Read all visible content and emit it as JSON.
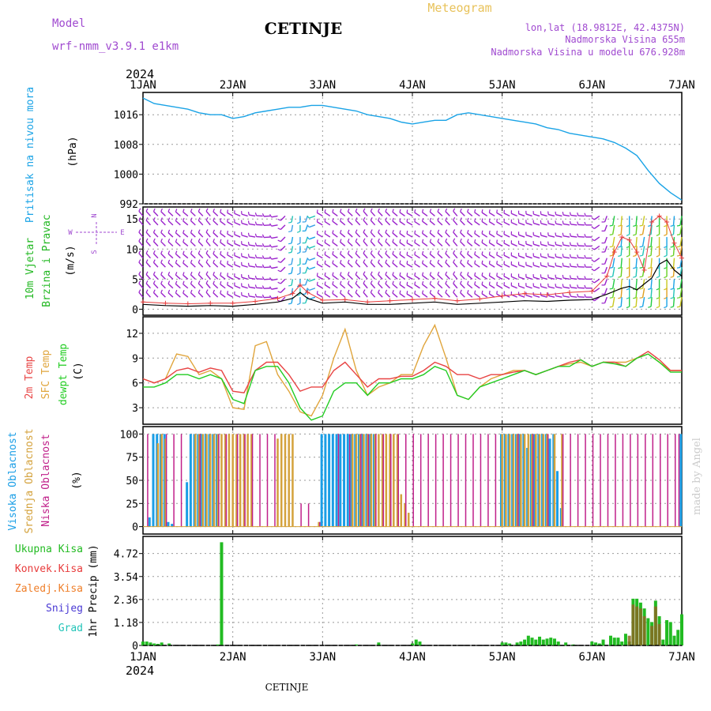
{
  "header": {
    "model_label": "Model",
    "model_value": "wrf-nmm_v3.9.1  e1km",
    "station": "CETINJE",
    "product": "Meteogram",
    "lonlat": "lon,lat (18.9812E, 42.4375N)",
    "elevation": "Nadmorska Visina 655m",
    "model_elevation": "Nadmorska Visina u modelu 676.928m",
    "year_top": "2024",
    "year_bottom": "2024",
    "footer_station": "CETINJE",
    "credit": "made by Angel"
  },
  "colors": {
    "pressure": "#1aa3e6",
    "wind_label": "#22b822",
    "wind_barb": "#9a22cc",
    "gust": "#e83c3c",
    "mean_wind": "#000000",
    "temp2m": "#e84444",
    "sfc_temp": "#e0a53c",
    "dewpoint": "#22cc22",
    "cloud_high": "#1a9ee6",
    "cloud_mid": "#d4a23c",
    "cloud_low": "#c0208a",
    "precip_total": "#22bb22",
    "precip_conv": "#e83c3c",
    "precip_frozen": "#ef7f2a",
    "precip_snow": "#4a3ad4",
    "precip_graupel": "#22c4b8",
    "header_purple": "#a04ad0",
    "header_gold": "#e8c25a"
  },
  "time_axis": {
    "days": [
      "1JAN",
      "2JAN",
      "3JAN",
      "4JAN",
      "5JAN",
      "6JAN",
      "7JAN"
    ]
  },
  "panels": {
    "pressure": {
      "label": "Pritisak na nivou mora",
      "unit": "(hPa)",
      "ticks": [
        "1016",
        "1008",
        "1000",
        "992"
      ]
    },
    "wind": {
      "label1": "10m Vjetar",
      "label2": "Brzina i Pravac",
      "unit": "(m/s)",
      "ticks": [
        "15",
        "10",
        "5",
        "0"
      ],
      "compass_n": "N",
      "compass_s": "S",
      "compass_w": "W",
      "compass_e": "E"
    },
    "temperature": {
      "label1": "2m Temp",
      "label2": "SFC Temp",
      "label3": "dewpt Temp",
      "unit": "(C)",
      "ticks": [
        "12",
        "9",
        "6",
        "3"
      ]
    },
    "clouds": {
      "label1": "Visoka Oblacnost",
      "label2": "Srednja Oblacnost",
      "label3": "Niska Oblacnost",
      "unit": "(%)",
      "ticks": [
        "100",
        "75",
        "50",
        "25",
        "0"
      ]
    },
    "precip": {
      "legend": [
        "Ukupna Kisa",
        "Konvek.Kisa",
        "Zaledj.Kisa",
        "Snijeg",
        "Grad"
      ],
      "unit": "1hr Precip (mm)",
      "ticks": [
        "4.72",
        "3.54",
        "2.36",
        "1.18",
        "0"
      ]
    }
  },
  "chart_data": [
    {
      "type": "line",
      "name": "Pritisak na nivou mora",
      "x_unit": "hours since 1 JAN 2024 00 UTC",
      "ylim": [
        992,
        1022
      ],
      "x": [
        0,
        3,
        6,
        9,
        12,
        15,
        18,
        21,
        24,
        27,
        30,
        33,
        36,
        39,
        42,
        45,
        48,
        51,
        54,
        57,
        60,
        63,
        66,
        69,
        72,
        75,
        78,
        81,
        84,
        87,
        90,
        93,
        96,
        99,
        102,
        105,
        108,
        111,
        114,
        117,
        120,
        123,
        126,
        129,
        132,
        135,
        138,
        141,
        144
      ],
      "values": [
        1020.5,
        1019,
        1018.5,
        1018,
        1017.5,
        1016.5,
        1016,
        1016,
        1015,
        1015.5,
        1016.5,
        1017,
        1017.5,
        1018,
        1018,
        1018.5,
        1018.5,
        1018,
        1017.5,
        1017,
        1016,
        1015.5,
        1015,
        1014,
        1013.5,
        1014,
        1014.5,
        1014.5,
        1016,
        1016.5,
        1016,
        1015.5,
        1015,
        1014.5,
        1014,
        1013.5,
        1012.5,
        1012,
        1011,
        1010.5,
        1010,
        1009.5,
        1008.5,
        1007,
        1005,
        1001,
        997.5,
        995,
        993
      ]
    },
    {
      "type": "line",
      "name": "10m Vjetar Brzina",
      "ylim": [
        -1,
        17
      ],
      "x": [
        0,
        6,
        12,
        18,
        24,
        30,
        36,
        40,
        42,
        44,
        48,
        54,
        60,
        66,
        72,
        78,
        84,
        90,
        96,
        102,
        108,
        114,
        120,
        124,
        126,
        128,
        130,
        132,
        134,
        136,
        138,
        140,
        142,
        144
      ],
      "mean": [
        0.8,
        0.6,
        0.5,
        0.6,
        0.5,
        0.8,
        1.2,
        1.8,
        2.8,
        1.8,
        1.0,
        1.2,
        0.8,
        0.8,
        1.0,
        1.2,
        0.8,
        1.0,
        1.2,
        1.4,
        1.3,
        1.5,
        1.6,
        2.5,
        3.0,
        3.5,
        3.8,
        3.2,
        4.2,
        5.2,
        7.5,
        8.2,
        6.5,
        5.5
      ],
      "gust": [
        1.2,
        1.0,
        0.9,
        1.0,
        1.0,
        1.3,
        1.8,
        2.6,
        4.0,
        2.8,
        1.5,
        1.6,
        1.2,
        1.4,
        1.6,
        1.8,
        1.4,
        1.7,
        2.2,
        2.6,
        2.4,
        2.8,
        3.0,
        5.5,
        9.5,
        12.0,
        11.5,
        9.5,
        6.5,
        14.5,
        15.5,
        14.5,
        11.0,
        8.5
      ],
      "wind_dir_deg": [
        320,
        315,
        310,
        320,
        300,
        280,
        260,
        190,
        180,
        200,
        300,
        310,
        320,
        315,
        300,
        310,
        320,
        305,
        300,
        290,
        285,
        280,
        270,
        200,
        190,
        185,
        180,
        185,
        190,
        185,
        180,
        180,
        185,
        190
      ]
    },
    {
      "type": "line",
      "name": "Temperatura",
      "ylim": [
        1,
        14
      ],
      "x": [
        0,
        3,
        6,
        9,
        12,
        15,
        18,
        21,
        24,
        27,
        30,
        33,
        36,
        39,
        42,
        45,
        48,
        51,
        54,
        57,
        60,
        63,
        66,
        69,
        72,
        75,
        78,
        81,
        84,
        87,
        90,
        93,
        96,
        99,
        102,
        105,
        108,
        111,
        114,
        117,
        120,
        123,
        126,
        129,
        132,
        135,
        138,
        141,
        144
      ],
      "series": [
        {
          "name": "2m Temp",
          "values": [
            6.5,
            6.0,
            6.5,
            7.5,
            7.8,
            7.3,
            7.8,
            7.5,
            5.0,
            4.8,
            7.5,
            8.5,
            8.5,
            7.0,
            5.0,
            5.5,
            5.5,
            7.5,
            8.5,
            7.0,
            5.5,
            6.5,
            6.5,
            6.8,
            6.8,
            7.5,
            8.5,
            8.0,
            7.0,
            7.0,
            6.5,
            7.0,
            7.0,
            7.3,
            7.5,
            7.0,
            7.5,
            8.0,
            8.5,
            8.8,
            8.0,
            8.5,
            8.5,
            8.0,
            9.0,
            9.8,
            8.8,
            7.5,
            7.5
          ]
        },
        {
          "name": "SFC Temp",
          "values": [
            6.5,
            6.0,
            6.5,
            9.5,
            9.2,
            7.0,
            7.5,
            6.5,
            3.0,
            2.8,
            10.5,
            11.0,
            7.0,
            5.0,
            2.5,
            2.0,
            4.5,
            9.0,
            12.5,
            7.5,
            4.5,
            5.5,
            6.0,
            7.0,
            7.0,
            10.5,
            13.0,
            9.0,
            4.5,
            4.0,
            5.5,
            6.5,
            7.0,
            7.5,
            7.5,
            7.0,
            7.5,
            8.0,
            8.3,
            8.5,
            8.0,
            8.5,
            8.5,
            8.5,
            9.0,
            9.5,
            8.5,
            7.5,
            7.5
          ]
        },
        {
          "name": "dewpt Temp",
          "values": [
            5.5,
            5.5,
            6.0,
            7.0,
            7.0,
            6.5,
            7.0,
            6.5,
            4.0,
            3.5,
            7.5,
            8.0,
            8.0,
            6.0,
            3.0,
            1.5,
            2.0,
            5.0,
            6.0,
            6.0,
            4.5,
            6.0,
            6.0,
            6.5,
            6.5,
            7.0,
            8.0,
            7.5,
            4.5,
            4.0,
            5.5,
            6.0,
            6.5,
            7.0,
            7.5,
            7.0,
            7.5,
            8.0,
            8.0,
            8.8,
            8.0,
            8.5,
            8.3,
            8.0,
            9.0,
            9.5,
            8.5,
            7.3,
            7.3
          ]
        }
      ]
    },
    {
      "type": "bar",
      "name": "Oblacnost",
      "ylim": [
        0,
        100
      ],
      "series": [
        {
          "name": "Visoka Oblacnost",
          "x": [
            2,
            3,
            4,
            5,
            6,
            7,
            8,
            12,
            13,
            14,
            15,
            16,
            17,
            18,
            19,
            20,
            48,
            49,
            50,
            51,
            52,
            53,
            54,
            55,
            56,
            57,
            58,
            59,
            60,
            61,
            62,
            96,
            97,
            98,
            99,
            100,
            101,
            102,
            103,
            104,
            105,
            106,
            107,
            108,
            109,
            110,
            111,
            112,
            144
          ],
          "values": [
            10,
            100,
            100,
            100,
            100,
            5,
            3,
            48,
            100,
            100,
            100,
            100,
            100,
            100,
            100,
            100,
            100,
            100,
            100,
            100,
            100,
            100,
            100,
            100,
            100,
            100,
            100,
            100,
            100,
            100,
            100,
            100,
            100,
            100,
            100,
            100,
            100,
            100,
            85,
            100,
            100,
            100,
            100,
            100,
            95,
            100,
            60,
            20,
            100
          ]
        },
        {
          "name": "Srednja Oblacnost",
          "x": [
            4,
            5,
            6,
            14,
            15,
            16,
            17,
            18,
            19,
            20,
            21,
            22,
            23,
            24,
            25,
            26,
            27,
            28,
            29,
            36,
            37,
            38,
            39,
            40,
            47,
            56,
            57,
            58,
            59,
            60,
            61,
            62,
            63,
            64,
            65,
            66,
            67,
            68,
            69,
            70,
            71,
            96,
            97,
            98,
            99,
            100,
            101,
            102,
            103,
            104,
            105,
            106,
            107,
            108,
            110,
            112
          ],
          "values": [
            90,
            100,
            95,
            100,
            100,
            100,
            100,
            100,
            100,
            100,
            100,
            100,
            100,
            100,
            100,
            100,
            100,
            100,
            100,
            95,
            100,
            100,
            100,
            100,
            5,
            100,
            100,
            100,
            100,
            100,
            100,
            100,
            100,
            100,
            100,
            100,
            100,
            100,
            35,
            25,
            15,
            100,
            100,
            100,
            100,
            100,
            100,
            100,
            100,
            100,
            100,
            100,
            100,
            100,
            100,
            100
          ]
        },
        {
          "name": "Niska Oblacnost",
          "x": [
            1,
            6,
            8,
            10,
            15,
            20,
            22,
            25,
            27,
            29,
            31,
            33,
            35,
            42,
            44,
            47,
            52,
            55,
            58,
            60,
            62,
            64,
            66,
            68,
            70,
            72,
            74,
            76,
            78,
            80,
            82,
            84,
            86,
            88,
            90,
            92,
            94,
            100,
            104,
            108,
            112,
            114,
            116,
            118,
            120,
            122,
            124,
            126,
            128,
            130,
            132,
            134,
            136,
            138,
            140,
            142,
            143
          ],
          "values": [
            100,
            100,
            100,
            100,
            100,
            100,
            100,
            100,
            100,
            100,
            100,
            100,
            100,
            25,
            25,
            5,
            100,
            100,
            100,
            100,
            100,
            100,
            100,
            100,
            100,
            100,
            100,
            100,
            100,
            100,
            100,
            100,
            100,
            100,
            100,
            100,
            100,
            100,
            100,
            100,
            100,
            100,
            100,
            100,
            100,
            100,
            100,
            100,
            100,
            100,
            100,
            100,
            100,
            100,
            100,
            100,
            100
          ]
        }
      ]
    },
    {
      "type": "bar",
      "name": "1hr Precip",
      "ylim": [
        0,
        5.2
      ],
      "series": [
        {
          "name": "Ukupna Kisa",
          "x": [
            0,
            1,
            2,
            3,
            4,
            5,
            7,
            20,
            21,
            57,
            63,
            72,
            73,
            74,
            96,
            97,
            98,
            100,
            101,
            102,
            103,
            104,
            105,
            106,
            107,
            108,
            109,
            110,
            111,
            113,
            115,
            120,
            121,
            122,
            123,
            125,
            126,
            127,
            128,
            129,
            130,
            131,
            132,
            133,
            134,
            135,
            136,
            137,
            138,
            139,
            140,
            141,
            142,
            143,
            144
          ],
          "values": [
            0.2,
            0.2,
            0.15,
            0.1,
            0.08,
            0.15,
            0.1,
            0.05,
            5.3,
            0.05,
            0.15,
            0.1,
            0.3,
            0.2,
            0.15,
            0.15,
            0.1,
            0.15,
            0.2,
            0.3,
            0.5,
            0.4,
            0.3,
            0.45,
            0.3,
            0.35,
            0.4,
            0.35,
            0.2,
            0.15,
            0.05,
            0.2,
            0.15,
            0.1,
            0.3,
            0.5,
            0.4,
            0.4,
            0.2,
            0.6,
            0.2,
            2.4,
            2.4,
            2.2,
            1.9,
            1.4,
            1.2,
            2.3,
            1.5,
            0.3,
            1.3,
            1.2,
            0.5,
            0.8,
            1.6
          ]
        },
        {
          "name": "Konvek.Kisa",
          "x": [
            130,
            131,
            132,
            133,
            134,
            136,
            137,
            138
          ],
          "values": [
            0.5,
            2.1,
            2.0,
            1.9,
            1.5,
            1.0,
            2.0,
            1.1
          ]
        }
      ]
    }
  ]
}
